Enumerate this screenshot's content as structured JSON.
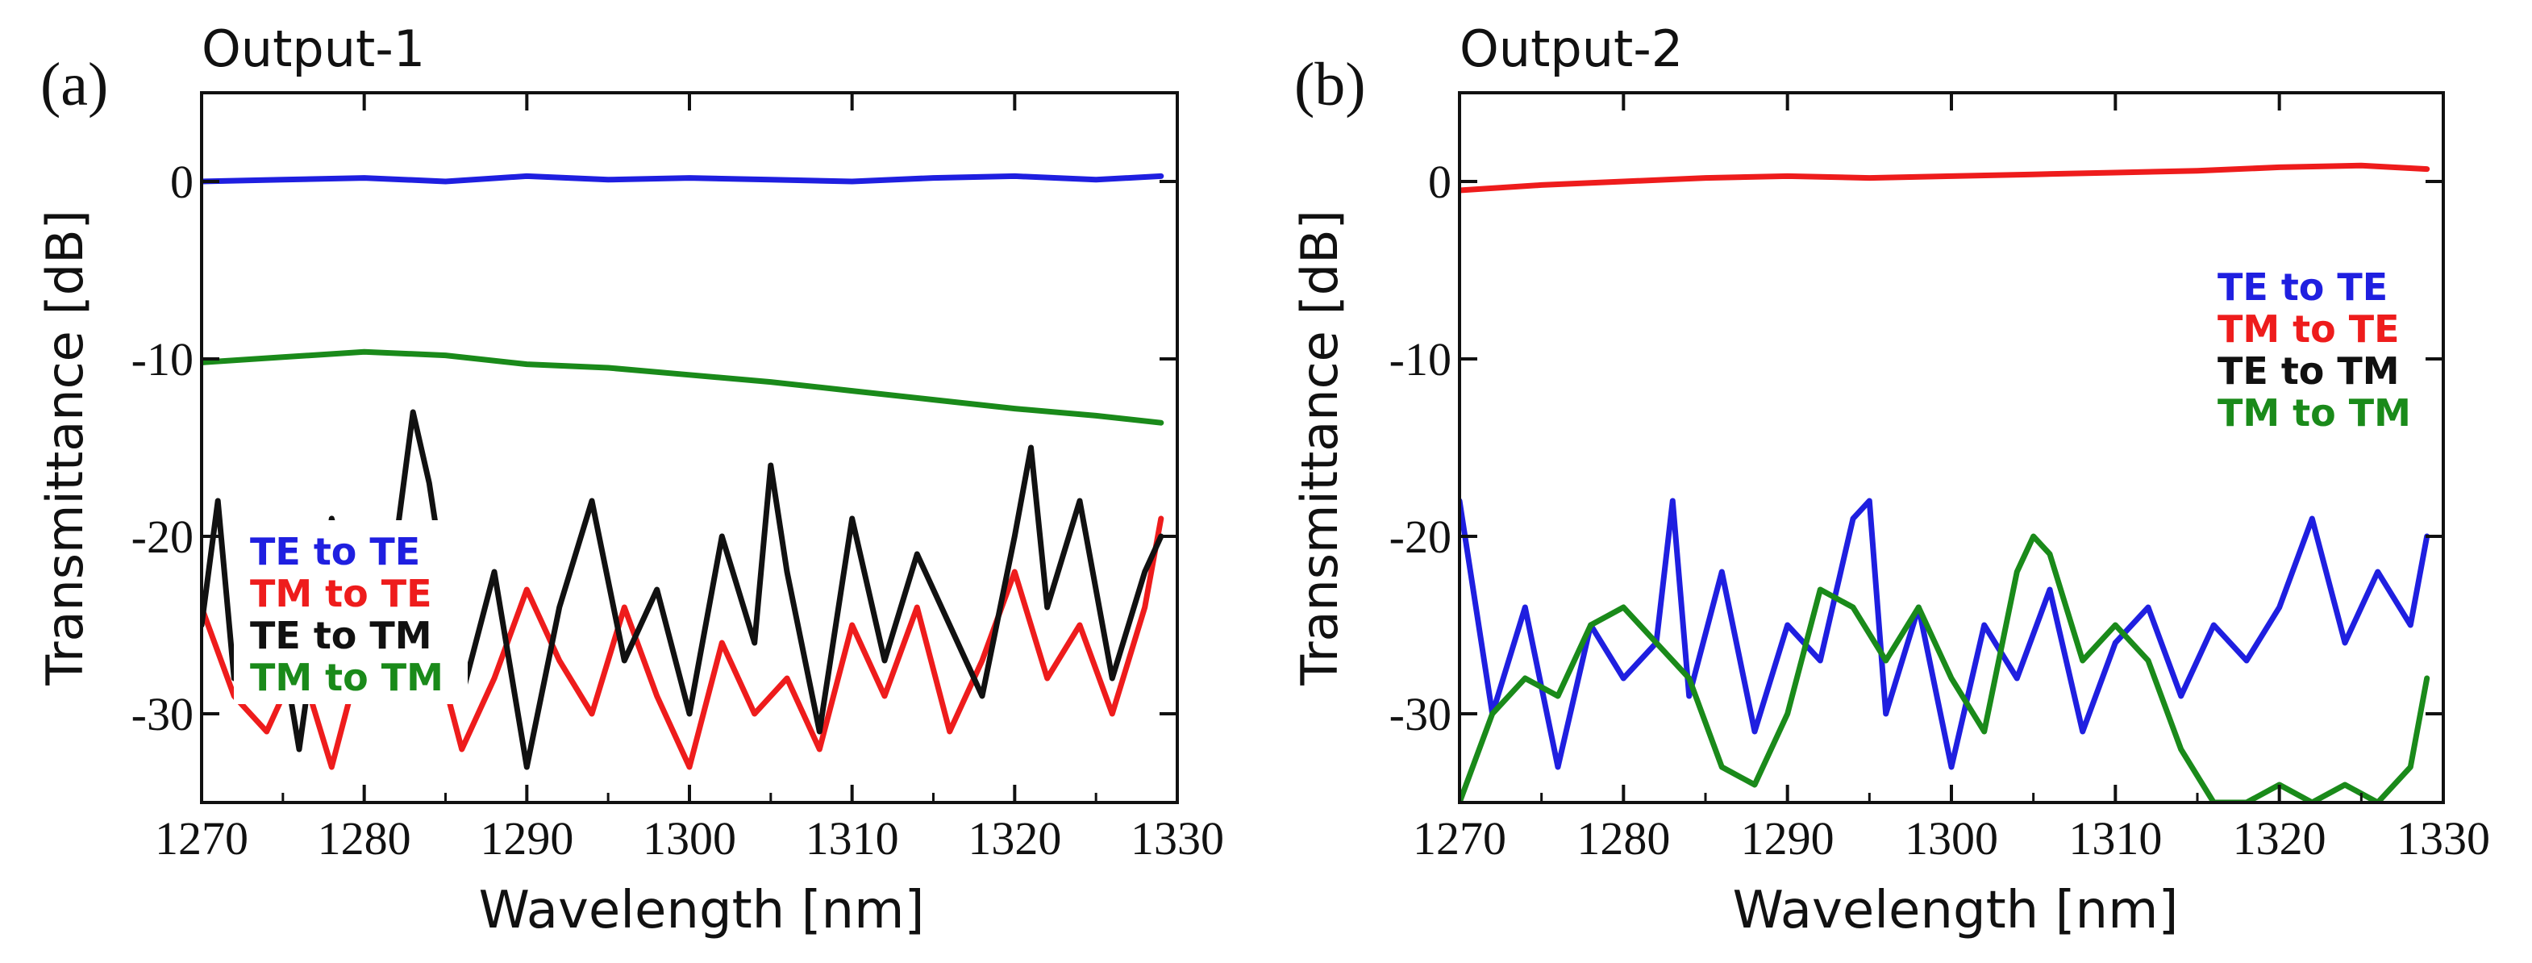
{
  "chart_data": [
    {
      "type": "line",
      "panel_label": "(a)",
      "title": "Output-1",
      "xlabel": "Wavelength [nm]",
      "ylabel": "Transmittance [dB]",
      "xlim": [
        1270,
        1330
      ],
      "ylim": [
        -35,
        5
      ],
      "x_ticks": [
        "1270",
        "1280",
        "1290",
        "1300",
        "1310",
        "1320",
        "1330"
      ],
      "y_ticks": [
        "0",
        "-10",
        "-20",
        "-30"
      ],
      "y_tick_values": [
        0,
        -10,
        -20,
        -30
      ],
      "grid": false,
      "legend_position": "bottom-left",
      "series": [
        {
          "name": "TE to TE",
          "color": "#1f1fe0",
          "x": [
            1270,
            1275,
            1280,
            1285,
            1290,
            1295,
            1300,
            1305,
            1310,
            1315,
            1320,
            1325,
            1329
          ],
          "values": [
            0.0,
            0.1,
            0.2,
            0.0,
            0.3,
            0.1,
            0.2,
            0.1,
            0.0,
            0.2,
            0.3,
            0.1,
            0.3
          ]
        },
        {
          "name": "TM to TE",
          "color": "#ee1c1c",
          "x": [
            1270,
            1272,
            1274,
            1276,
            1278,
            1280,
            1282,
            1284,
            1286,
            1288,
            1290,
            1292,
            1294,
            1296,
            1298,
            1300,
            1302,
            1304,
            1306,
            1308,
            1310,
            1312,
            1314,
            1316,
            1318,
            1320,
            1322,
            1324,
            1326,
            1328,
            1329
          ],
          "values": [
            -24,
            -29,
            -31,
            -27,
            -33,
            -26,
            -29,
            -25,
            -32,
            -28,
            -23,
            -27,
            -30,
            -24,
            -29,
            -33,
            -26,
            -30,
            -28,
            -32,
            -25,
            -29,
            -24,
            -31,
            -27,
            -22,
            -28,
            -25,
            -30,
            -24,
            -19
          ]
        },
        {
          "name": "TE to TM",
          "color": "#111111",
          "x": [
            1270,
            1271,
            1272,
            1274,
            1276,
            1278,
            1280,
            1282,
            1283,
            1284,
            1286,
            1288,
            1290,
            1292,
            1294,
            1296,
            1298,
            1300,
            1302,
            1304,
            1305,
            1306,
            1308,
            1310,
            1312,
            1314,
            1316,
            1318,
            1320,
            1321,
            1322,
            1324,
            1326,
            1328,
            1329
          ],
          "values": [
            -25,
            -18,
            -28,
            -21,
            -32,
            -19,
            -26,
            -20,
            -13,
            -17,
            -29,
            -22,
            -33,
            -24,
            -18,
            -27,
            -23,
            -30,
            -20,
            -26,
            -16,
            -22,
            -31,
            -19,
            -27,
            -21,
            -25,
            -29,
            -20,
            -15,
            -24,
            -18,
            -28,
            -22,
            -20
          ]
        },
        {
          "name": "TM to TM",
          "color": "#1a8a1a",
          "x": [
            1270,
            1275,
            1280,
            1285,
            1290,
            1295,
            1300,
            1305,
            1310,
            1315,
            1320,
            1325,
            1329
          ],
          "values": [
            -10.2,
            -9.9,
            -9.6,
            -9.8,
            -10.3,
            -10.5,
            -10.9,
            -11.3,
            -11.8,
            -12.3,
            -12.8,
            -13.2,
            -13.6
          ]
        }
      ]
    },
    {
      "type": "line",
      "panel_label": "(b)",
      "title": "Output-2",
      "xlabel": "Wavelength [nm]",
      "ylabel": "Transmittance [dB]",
      "xlim": [
        1270,
        1330
      ],
      "ylim": [
        -35,
        5
      ],
      "x_ticks": [
        "1270",
        "1280",
        "1290",
        "1300",
        "1310",
        "1320",
        "1330"
      ],
      "y_ticks": [
        "0",
        "-10",
        "-20",
        "-30"
      ],
      "y_tick_values": [
        0,
        -10,
        -20,
        -30
      ],
      "grid": false,
      "legend_position": "top-right",
      "series": [
        {
          "name": "TE to TE",
          "color": "#1f1fe0",
          "x": [
            1270,
            1272,
            1274,
            1276,
            1278,
            1280,
            1282,
            1283,
            1284,
            1286,
            1288,
            1290,
            1292,
            1294,
            1295,
            1296,
            1298,
            1300,
            1302,
            1304,
            1306,
            1308,
            1310,
            1312,
            1314,
            1316,
            1318,
            1320,
            1322,
            1324,
            1326,
            1328,
            1329
          ],
          "values": [
            -18,
            -30,
            -24,
            -33,
            -25,
            -28,
            -26,
            -18,
            -29,
            -22,
            -31,
            -25,
            -27,
            -19,
            -18,
            -30,
            -24,
            -33,
            -25,
            -28,
            -23,
            -31,
            -26,
            -24,
            -29,
            -25,
            -27,
            -24,
            -19,
            -26,
            -22,
            -25,
            -20
          ]
        },
        {
          "name": "TM to TE",
          "color": "#ee1c1c",
          "x": [
            1270,
            1275,
            1280,
            1285,
            1290,
            1295,
            1300,
            1305,
            1310,
            1315,
            1320,
            1325,
            1329
          ],
          "values": [
            -0.5,
            -0.2,
            0.0,
            0.2,
            0.3,
            0.2,
            0.3,
            0.4,
            0.5,
            0.6,
            0.8,
            0.9,
            0.7
          ]
        },
        {
          "name": "TE to TM",
          "color": "#111111",
          "x": [],
          "values": []
        },
        {
          "name": "TM to TM",
          "color": "#1a8a1a",
          "x": [
            1270,
            1272,
            1274,
            1276,
            1278,
            1280,
            1282,
            1284,
            1286,
            1288,
            1290,
            1292,
            1294,
            1296,
            1298,
            1300,
            1302,
            1304,
            1305,
            1306,
            1308,
            1310,
            1312,
            1314,
            1316,
            1318,
            1320,
            1322,
            1324,
            1326,
            1328,
            1329
          ],
          "values": [
            -35,
            -30,
            -28,
            -29,
            -25,
            -24,
            -26,
            -28,
            -33,
            -34,
            -30,
            -23,
            -24,
            -27,
            -24,
            -28,
            -31,
            -22,
            -20,
            -21,
            -27,
            -25,
            -27,
            -32,
            -35,
            -35,
            -34,
            -35,
            -34,
            -35,
            -33,
            -28
          ]
        }
      ]
    }
  ]
}
